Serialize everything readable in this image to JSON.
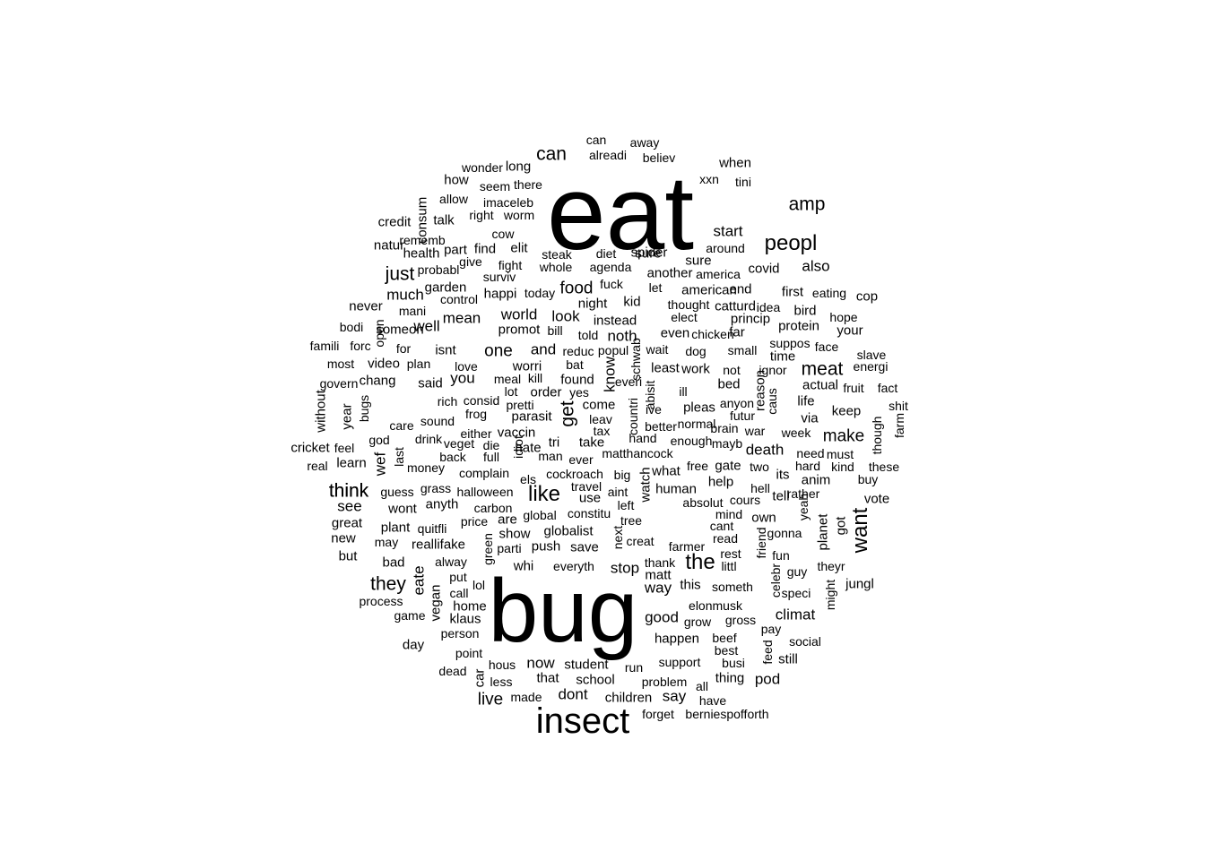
{
  "words": [
    "eat",
    "bug",
    "insect",
    "peopl",
    "like",
    "want",
    "think",
    "the",
    "they",
    "just",
    "meat",
    "amp",
    "can",
    "food",
    "world",
    "make",
    "get",
    "noth",
    "one",
    "know",
    "start",
    "also",
    "you",
    "and",
    "come",
    "look",
    "instead",
    "think",
    "see",
    "much",
    "mean",
    "well",
    "happi",
    "promot",
    "eate",
    "vegan",
    "plant",
    "great",
    "klaus",
    "vote",
    "keep",
    "anim",
    "actual",
    "protein",
    "chang",
    "time",
    "said",
    "good",
    "climat",
    "stop",
    "watch",
    "human",
    "planet",
    "use",
    "globalist",
    "save",
    "show",
    "push",
    "reallifake",
    "wont",
    "anyth",
    "bad",
    "way",
    "matt",
    "this",
    "jungl",
    "school",
    "student",
    "now",
    "that",
    "dont",
    "say",
    "live",
    "children",
    "pod",
    "thing",
    "still",
    "happen",
    "grow",
    "gross",
    "day",
    "home",
    "person",
    "car",
    "how",
    "long",
    "when",
    "can",
    "away",
    "alreadi",
    "believ",
    "wonder",
    "seem",
    "there",
    "xxn",
    "tini",
    "allow",
    "imaceleb",
    "consum",
    "talk",
    "right",
    "worm",
    "credit",
    "cow",
    "rememb",
    "natur",
    "part",
    "find",
    "elit",
    "steak",
    "diet",
    "spider",
    "sure",
    "around",
    "health",
    "give",
    "fight",
    "whole",
    "agenda",
    "another",
    "america",
    "covid",
    "probabl",
    "surviv",
    "garden",
    "fuck",
    "let",
    "american",
    "end",
    "first",
    "eating",
    "cop",
    "control",
    "today",
    "night",
    "kid",
    "thought",
    "catturd",
    "idea",
    "bird",
    "never",
    "mani",
    "someon",
    "bill",
    "told",
    "elect",
    "princip",
    "even",
    "chicken",
    "far",
    "your",
    "hope",
    "bodi",
    "open",
    "famili",
    "forc",
    "for",
    "reduc",
    "popul",
    "wait",
    "dog",
    "small",
    "suppos",
    "face",
    "slave",
    "most",
    "video",
    "plan",
    "isnt",
    "love",
    "worri",
    "bat",
    "schwab",
    "least",
    "work",
    "not",
    "ignor",
    "energi",
    "govern",
    "meal",
    "kill",
    "found",
    "everi",
    "bed",
    "anyon",
    "fruit",
    "fact",
    "rich",
    "consid",
    "lot",
    "order",
    "yes",
    "abisit",
    "ill",
    "reason",
    "life",
    "bugs",
    "pretti",
    "tax",
    "leav",
    "ive",
    "pleas",
    "futur",
    "caus",
    "shit",
    "without",
    "year",
    "care",
    "sound",
    "frog",
    "parasit",
    "countri",
    "normal",
    "brain",
    "via",
    "farm",
    "god",
    "drink",
    "either",
    "vaccin",
    "better",
    "hand",
    "enough",
    "war",
    "week",
    "though",
    "cricket",
    "feel",
    "veget",
    "die",
    "hate",
    "tri",
    "take",
    "mayb",
    "death",
    "need",
    "must",
    "real",
    "learn",
    "back",
    "full",
    "idiot",
    "man",
    "ever",
    "matthancock",
    "free",
    "gate",
    "two",
    "hard",
    "kind",
    "these",
    "wef",
    "money",
    "last",
    "complain",
    "els",
    "cockroach",
    "big",
    "what",
    "its",
    "buy",
    "guess",
    "grass",
    "halloween",
    "travel",
    "aint",
    "help",
    "hell",
    "rather",
    "carbon",
    "global",
    "constitu",
    "left",
    "absolut",
    "cours",
    "tell",
    "yeah",
    "new",
    "may",
    "price",
    "are",
    "tree",
    "mind",
    "own",
    "got",
    "but",
    "quitfli",
    "green",
    "parti",
    "creat",
    "cant",
    "gonna",
    "friend",
    "alway",
    "whi",
    "everyth",
    "next",
    "farmer",
    "read",
    "thank",
    "littl",
    "rest",
    "fun",
    "theyr",
    "put",
    "lol",
    "celebr",
    "guy",
    "might",
    "process",
    "call",
    "someth",
    "speci",
    "game",
    "elonmusk",
    "pay",
    "social",
    "feed",
    "point",
    "hous",
    "best",
    "busi",
    "dead",
    "less",
    "run",
    "support",
    "made",
    "problem",
    "all",
    "have",
    "forget",
    "berniespofforth",
    "beef",
    "sure"
  ]
}
